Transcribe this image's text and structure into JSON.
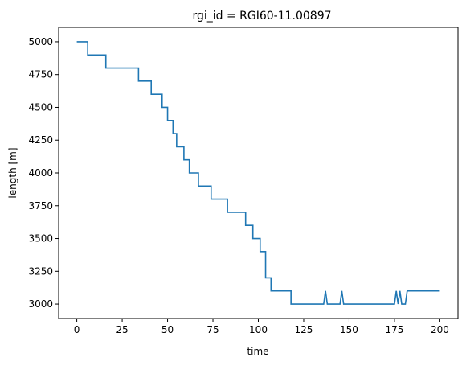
{
  "chart_data": {
    "type": "line",
    "title": "rgi_id = RGI60-11.00897",
    "xlabel": "time",
    "ylabel": "length [m]",
    "xlim": [
      -10,
      210
    ],
    "ylim": [
      2890,
      5110
    ],
    "xticks": [
      0,
      25,
      50,
      75,
      100,
      125,
      150,
      175,
      200
    ],
    "yticks": [
      3000,
      3250,
      3500,
      3750,
      4000,
      4250,
      4500,
      4750,
      5000
    ],
    "grid": false,
    "series": [
      {
        "color": "#1f77b4",
        "x": [
          0,
          6,
          6,
          15,
          15,
          16,
          16,
          33,
          33,
          34,
          34,
          40,
          40,
          41,
          41,
          46,
          46,
          47,
          47,
          49,
          49,
          50,
          50,
          52,
          52,
          53,
          53,
          54,
          54,
          55,
          55,
          56,
          56,
          59,
          59,
          60,
          60,
          62,
          62,
          63,
          63,
          67,
          67,
          68,
          68,
          73,
          73,
          74,
          74,
          82,
          82,
          83,
          83,
          92,
          92,
          93,
          93,
          96,
          96,
          97,
          97,
          100,
          100,
          101,
          101,
          103,
          103,
          104,
          104,
          106,
          106,
          107,
          107,
          109,
          109,
          110,
          110,
          118,
          118,
          119,
          119,
          136,
          137,
          138,
          145,
          146,
          147,
          175,
          176,
          177,
          178,
          179,
          181,
          182,
          200
        ],
        "y": [
          5000,
          5000,
          4900,
          4900,
          4900,
          4900,
          4800,
          4800,
          4800,
          4800,
          4700,
          4700,
          4700,
          4700,
          4600,
          4600,
          4600,
          4600,
          4500,
          4500,
          4500,
          4500,
          4400,
          4400,
          4400,
          4400,
          4300,
          4300,
          4300,
          4300,
          4200,
          4200,
          4200,
          4200,
          4100,
          4100,
          4100,
          4100,
          4000,
          4000,
          4000,
          4000,
          3900,
          3900,
          3900,
          3900,
          3900,
          3900,
          3800,
          3800,
          3800,
          3800,
          3700,
          3700,
          3700,
          3700,
          3600,
          3600,
          3600,
          3600,
          3500,
          3500,
          3500,
          3500,
          3400,
          3400,
          3400,
          3400,
          3200,
          3200,
          3200,
          3200,
          3100,
          3100,
          3100,
          3100,
          3100,
          3100,
          3000,
          3000,
          3000,
          3000,
          3100,
          3000,
          3000,
          3100,
          3000,
          3000,
          3100,
          3000,
          3100,
          3000,
          3000,
          3100,
          3100
        ]
      }
    ]
  }
}
